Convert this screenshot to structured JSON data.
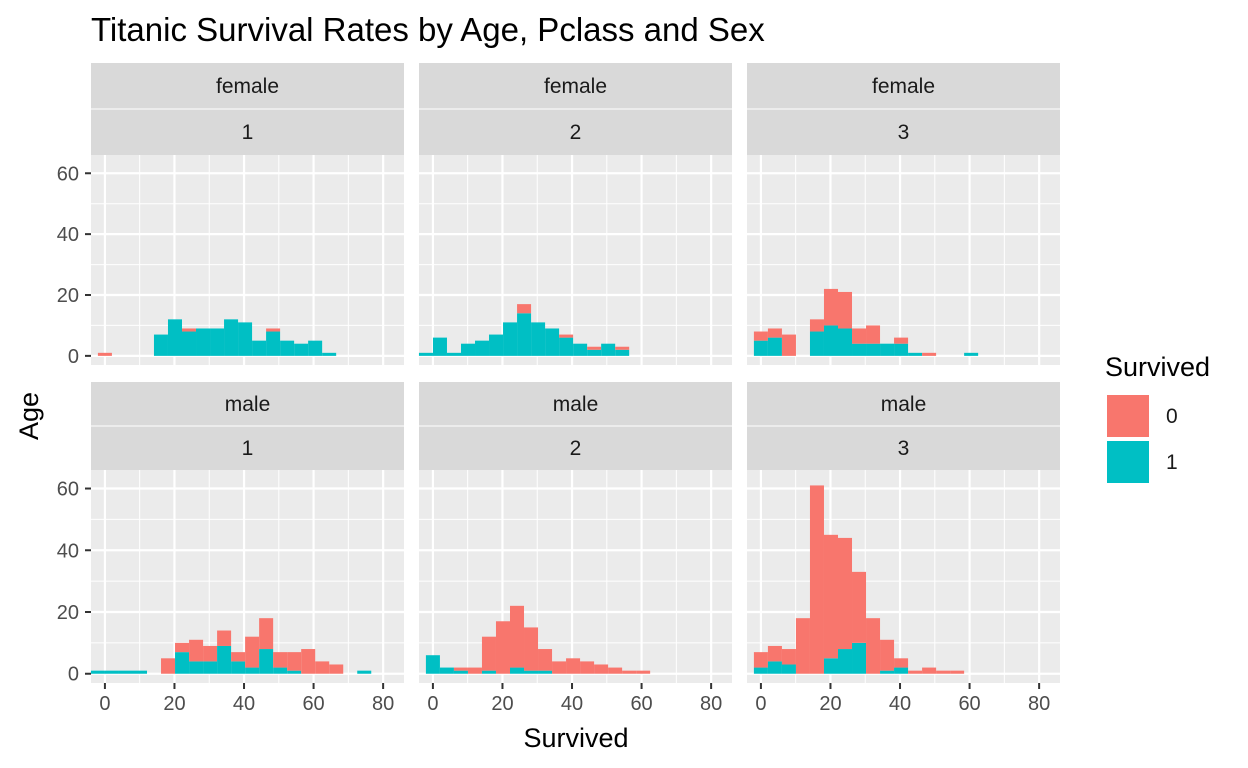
{
  "chart_data": {
    "type": "bar",
    "chart_subtype": "faceted stacked histogram",
    "title": "Titanic Survival Rates by Age, Pclass and Sex",
    "xlabel": "Survived",
    "ylabel": "Age",
    "xlim": [
      -4,
      86
    ],
    "ylim": [
      -3,
      66
    ],
    "xticks": [
      0,
      20,
      40,
      60,
      80
    ],
    "yticks": [
      0,
      20,
      40,
      60
    ],
    "grid": true,
    "legend": {
      "title": "Survived",
      "position": "right",
      "entries": [
        {
          "label": "0",
          "color": "#F8766D"
        },
        {
          "label": "1",
          "color": "#00BFC4"
        }
      ]
    },
    "bin_width": 4.03,
    "bin_centers": [
      0,
      4.03,
      8.06,
      12.09,
      16.12,
      20.15,
      24.18,
      28.21,
      32.24,
      36.27,
      40.3,
      44.33,
      48.36,
      52.39,
      56.42,
      60.45,
      64.48,
      68.51,
      72.54,
      76.57,
      80.6
    ],
    "facets": [
      {
        "sex": "female",
        "pclass": "1",
        "survived_0": [
          1,
          0,
          0,
          0,
          0,
          0,
          1,
          0,
          0,
          0,
          0,
          0,
          1,
          0,
          0,
          0,
          0,
          0,
          0,
          0,
          0
        ],
        "survived_1": [
          0,
          0,
          0,
          0,
          7,
          12,
          8,
          9,
          9,
          12,
          11,
          5,
          8,
          5,
          4,
          5,
          1,
          0,
          0,
          0,
          0
        ]
      },
      {
        "sex": "female",
        "pclass": "2",
        "survived_0": [
          0,
          0,
          0,
          0,
          0,
          0,
          0,
          3,
          0,
          0,
          1,
          0,
          1,
          0,
          1,
          0,
          0,
          0,
          0,
          0,
          0
        ],
        "survived_1": [
          1,
          6,
          1,
          4,
          5,
          7,
          11,
          14,
          11,
          9,
          6,
          4,
          2,
          4,
          2,
          0,
          0,
          0,
          0,
          0,
          0
        ],
        "x_offset": -2
      },
      {
        "sex": "female",
        "pclass": "3",
        "survived_0": [
          3,
          3,
          7,
          0,
          4,
          12,
          12,
          5,
          6,
          0,
          2,
          0,
          1,
          0,
          0,
          0,
          0,
          0,
          0,
          0,
          0
        ],
        "survived_1": [
          5,
          6,
          0,
          0,
          8,
          10,
          9,
          4,
          4,
          4,
          4,
          1,
          0,
          0,
          0,
          1,
          0,
          0,
          0,
          0,
          0
        ]
      },
      {
        "sex": "male",
        "pclass": "1",
        "survived_0": [
          0,
          0,
          0,
          0,
          0,
          5,
          3,
          7,
          5,
          5,
          3,
          10,
          10,
          5,
          6,
          8,
          4,
          3,
          0,
          0,
          0
        ],
        "survived_1": [
          1,
          1,
          1,
          1,
          0,
          0,
          7,
          4,
          4,
          9,
          4,
          2,
          8,
          2,
          1,
          0,
          0,
          0,
          0,
          1,
          0
        ],
        "x_offset": -2
      },
      {
        "sex": "male",
        "pclass": "2",
        "survived_0": [
          0,
          0,
          1,
          2,
          11,
          17,
          20,
          14,
          7,
          4,
          5,
          4,
          3,
          2,
          1,
          1,
          0,
          0,
          0,
          0,
          0
        ],
        "survived_1": [
          6,
          2,
          1,
          0,
          1,
          0,
          2,
          1,
          1,
          0,
          0,
          0,
          0,
          0,
          0,
          0,
          0,
          0,
          0,
          0,
          0
        ]
      },
      {
        "sex": "male",
        "pclass": "3",
        "survived_0": [
          5,
          5,
          5,
          18,
          61,
          40,
          36,
          23,
          18,
          10,
          3,
          1,
          2,
          1,
          1,
          0,
          0,
          0,
          0,
          0,
          0
        ],
        "survived_1": [
          2,
          4,
          3,
          0,
          0,
          5,
          8,
          10,
          0,
          1,
          2,
          0,
          0,
          0,
          0,
          0,
          0,
          0,
          0,
          0,
          0
        ]
      }
    ]
  }
}
